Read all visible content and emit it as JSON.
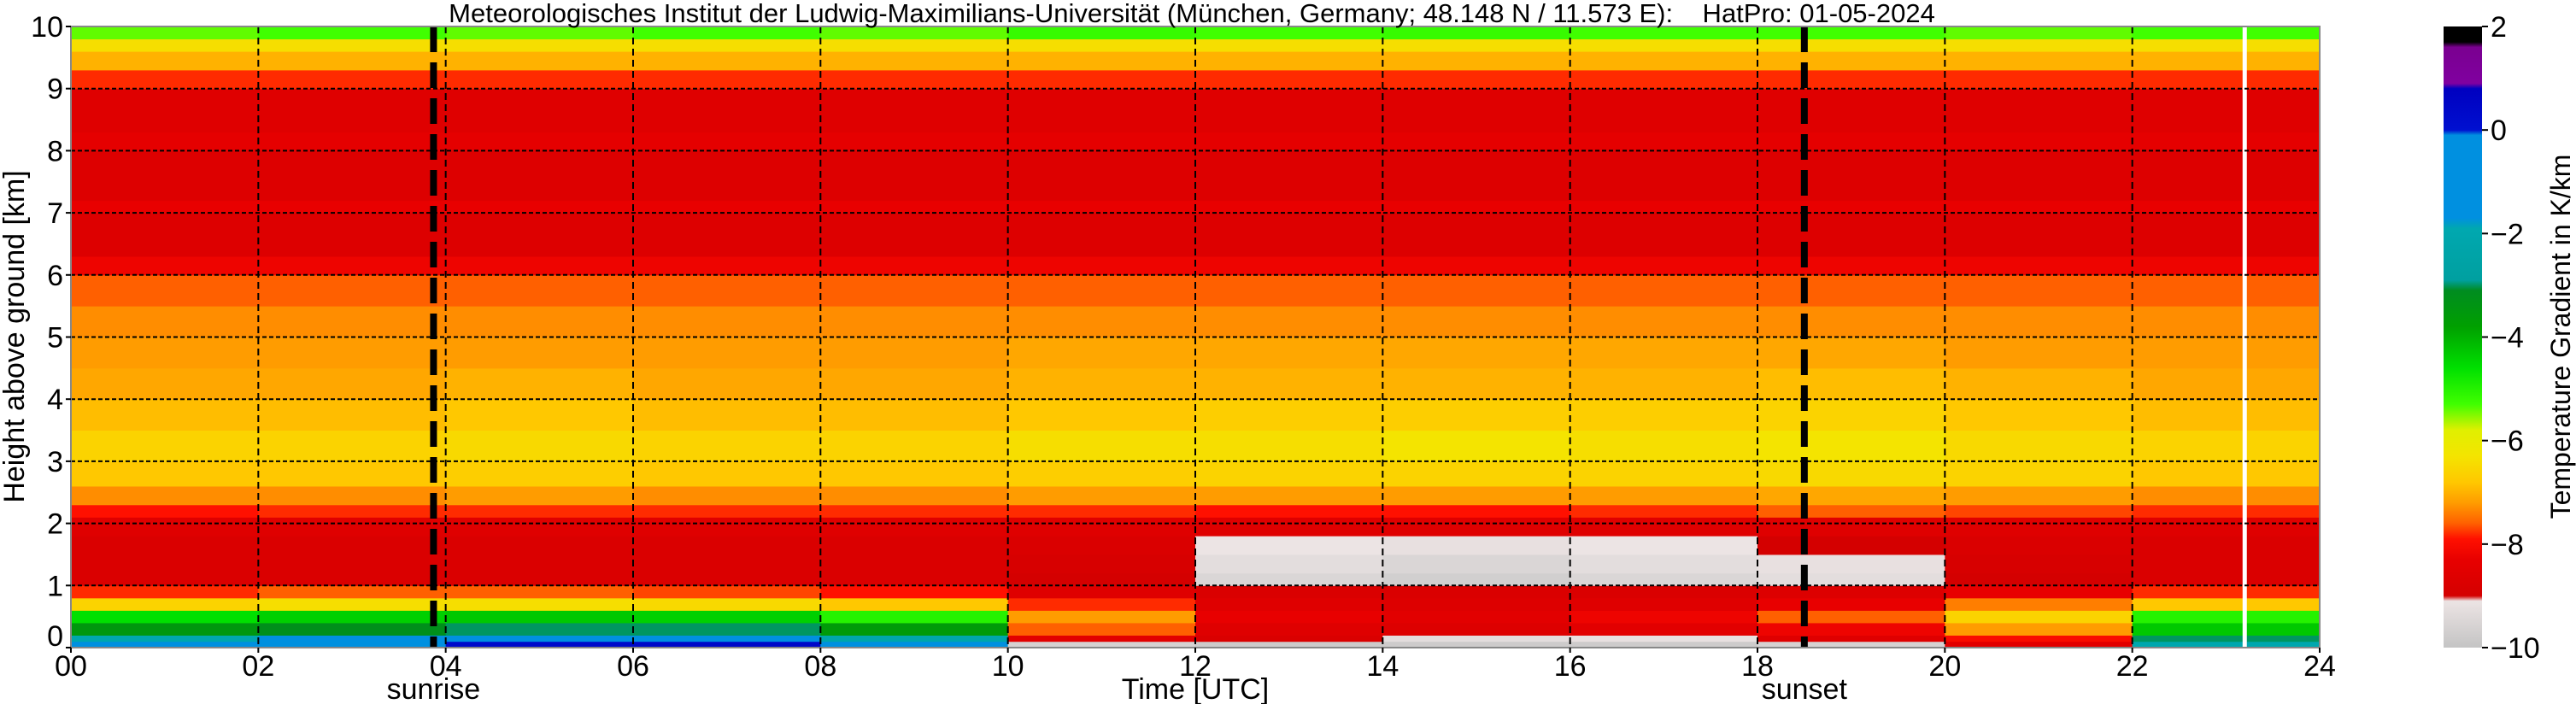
{
  "chart_data": {
    "type": "heatmap",
    "title": "Meteorologisches Institut der Ludwig-Maximilians-Universität (München, Germany; 48.148 N / 11.573 E):    HatPro: 01-05-2024",
    "xlabel": "Time [UTC]",
    "ylabel": "Height above ground [km]",
    "xlim": [
      0,
      24
    ],
    "ylim": [
      0,
      10
    ],
    "xticks": [
      "00",
      "02",
      "04",
      "06",
      "08",
      "10",
      "12",
      "14",
      "16",
      "18",
      "20",
      "22",
      "24"
    ],
    "yticks": [
      "0",
      "1",
      "2",
      "3",
      "4",
      "5",
      "6",
      "7",
      "8",
      "9",
      "10"
    ],
    "grid": true,
    "time_bin_centers_h": [
      1,
      3,
      5,
      7,
      9,
      11,
      13,
      15,
      17,
      19,
      21,
      23
    ],
    "height_bins_km": [
      [
        0,
        0.1
      ],
      [
        0.1,
        0.2
      ],
      [
        0.2,
        0.4
      ],
      [
        0.4,
        0.6
      ],
      [
        0.6,
        0.8
      ],
      [
        0.8,
        1.0
      ],
      [
        1.0,
        1.2
      ],
      [
        1.2,
        1.5
      ],
      [
        1.5,
        1.8
      ],
      [
        1.8,
        2.1
      ],
      [
        2.1,
        2.3
      ],
      [
        2.3,
        2.6
      ],
      [
        2.6,
        3.0
      ],
      [
        3.0,
        3.5
      ],
      [
        3.5,
        4.0
      ],
      [
        4.0,
        4.5
      ],
      [
        4.5,
        5.0
      ],
      [
        5.0,
        5.5
      ],
      [
        5.5,
        6.0
      ],
      [
        6.0,
        6.3
      ],
      [
        6.3,
        7.0
      ],
      [
        7.0,
        7.2
      ],
      [
        7.2,
        8.0
      ],
      [
        8.0,
        8.3
      ],
      [
        8.3,
        9.0
      ],
      [
        9.0,
        9.3
      ],
      [
        9.3,
        9.6
      ],
      [
        9.6,
        9.8
      ],
      [
        9.8,
        10.0
      ]
    ],
    "values": [
      [
        -1.0,
        -0.5,
        0.3,
        0.4,
        -1.5,
        -9.6,
        -9.8,
        -9.8,
        -9.8,
        -9.6,
        -8.5,
        -2.0
      ],
      [
        -2.0,
        -1.6,
        -1.2,
        -1.2,
        -2.2,
        -8.5,
        -8.8,
        -9.3,
        -9.2,
        -8.6,
        -8.0,
        -3.0
      ],
      [
        -3.5,
        -3.2,
        -3.0,
        -3.0,
        -3.6,
        -7.6,
        -8.6,
        -8.7,
        -8.5,
        -8.2,
        -7.2,
        -4.3
      ],
      [
        -4.6,
        -4.4,
        -4.3,
        -4.4,
        -5.0,
        -7.2,
        -8.3,
        -8.5,
        -8.2,
        -7.6,
        -6.6,
        -5.0
      ],
      [
        -6.6,
        -6.4,
        -6.4,
        -6.5,
        -6.8,
        -7.8,
        -8.6,
        -8.7,
        -8.6,
        -8.3,
        -7.4,
        -6.8
      ],
      [
        -7.8,
        -7.6,
        -7.6,
        -7.7,
        -7.9,
        -8.6,
        -8.8,
        -8.8,
        -8.8,
        -8.7,
        -8.3,
        -7.8
      ],
      [
        -8.8,
        -8.8,
        -8.8,
        -8.8,
        -8.8,
        -9.0,
        -9.5,
        -9.7,
        -9.5,
        -9.3,
        -9.0,
        -8.8
      ],
      [
        -8.8,
        -8.8,
        -8.8,
        -8.8,
        -8.8,
        -8.9,
        -9.3,
        -9.5,
        -9.3,
        -9.2,
        -8.9,
        -8.8
      ],
      [
        -8.8,
        -8.8,
        -8.8,
        -8.8,
        -8.8,
        -8.8,
        -9.1,
        -9.2,
        -9.1,
        -9.0,
        -8.8,
        -8.8
      ],
      [
        -8.6,
        -8.6,
        -8.6,
        -8.6,
        -8.6,
        -8.6,
        -8.6,
        -8.6,
        -8.6,
        -8.6,
        -8.6,
        -8.6
      ],
      [
        -7.9,
        -7.8,
        -7.8,
        -7.8,
        -7.8,
        -7.8,
        -7.9,
        -7.9,
        -7.8,
        -7.6,
        -7.7,
        -7.8
      ],
      [
        -7.3,
        -7.3,
        -7.2,
        -7.3,
        -7.3,
        -7.2,
        -7.2,
        -7.2,
        -7.2,
        -7.1,
        -7.2,
        -7.3
      ],
      [
        -6.8,
        -6.8,
        -6.7,
        -6.8,
        -6.8,
        -6.7,
        -6.6,
        -6.6,
        -6.6,
        -6.5,
        -6.6,
        -6.8
      ],
      [
        -6.6,
        -6.6,
        -6.5,
        -6.6,
        -6.6,
        -6.4,
        -6.4,
        -6.3,
        -6.4,
        -6.3,
        -6.5,
        -6.6
      ],
      [
        -6.9,
        -6.9,
        -6.8,
        -6.9,
        -6.9,
        -6.8,
        -6.7,
        -6.7,
        -6.7,
        -6.6,
        -6.8,
        -6.9
      ],
      [
        -7.1,
        -7.1,
        -7.0,
        -7.1,
        -7.1,
        -7.0,
        -7.0,
        -7.0,
        -7.0,
        -6.9,
        -7.0,
        -7.1
      ],
      [
        -7.2,
        -7.2,
        -7.2,
        -7.2,
        -7.2,
        -7.1,
        -7.1,
        -7.1,
        -7.1,
        -7.1,
        -7.2,
        -7.2
      ],
      [
        -7.3,
        -7.3,
        -7.3,
        -7.3,
        -7.3,
        -7.3,
        -7.3,
        -7.3,
        -7.3,
        -7.3,
        -7.3,
        -7.3
      ],
      [
        -7.6,
        -7.6,
        -7.6,
        -7.6,
        -7.6,
        -7.6,
        -7.6,
        -7.6,
        -7.6,
        -7.6,
        -7.6,
        -7.6
      ],
      [
        -8.2,
        -8.2,
        -8.2,
        -8.2,
        -8.2,
        -8.2,
        -8.2,
        -8.2,
        -8.2,
        -8.2,
        -8.2,
        -8.2
      ],
      [
        -8.7,
        -8.7,
        -8.7,
        -8.7,
        -8.7,
        -8.7,
        -8.7,
        -8.7,
        -8.7,
        -8.7,
        -8.7,
        -8.7
      ],
      [
        -8.3,
        -8.3,
        -8.3,
        -8.3,
        -8.3,
        -8.3,
        -8.3,
        -8.3,
        -8.3,
        -8.3,
        -8.3,
        -8.3
      ],
      [
        -8.7,
        -8.7,
        -8.7,
        -8.7,
        -8.7,
        -8.7,
        -8.7,
        -8.7,
        -8.7,
        -8.7,
        -8.7,
        -8.7
      ],
      [
        -8.4,
        -8.4,
        -8.4,
        -8.4,
        -8.4,
        -8.4,
        -8.4,
        -8.4,
        -8.4,
        -8.4,
        -8.4,
        -8.4
      ],
      [
        -8.6,
        -8.6,
        -8.6,
        -8.6,
        -8.6,
        -8.6,
        -8.6,
        -8.6,
        -8.6,
        -8.6,
        -8.6,
        -8.6
      ],
      [
        -7.8,
        -7.8,
        -7.8,
        -7.8,
        -7.8,
        -7.8,
        -7.8,
        -7.8,
        -7.8,
        -7.8,
        -7.8,
        -7.8
      ],
      [
        -7.0,
        -7.0,
        -7.0,
        -7.0,
        -7.0,
        -7.0,
        -7.0,
        -7.0,
        -7.0,
        -7.0,
        -7.0,
        -7.0
      ],
      [
        -6.4,
        -6.4,
        -6.4,
        -6.4,
        -6.4,
        -6.4,
        -6.4,
        -6.4,
        -6.4,
        -6.4,
        -6.4,
        -6.4
      ],
      [
        -5.4,
        -5.3,
        -5.4,
        -5.3,
        -5.4,
        -5.2,
        -5.3,
        -5.2,
        -5.3,
        -5.3,
        -5.4,
        -5.3
      ]
    ],
    "annotations": [
      {
        "label": "sunrise",
        "time_h": 3.87
      },
      {
        "label": "sunset",
        "time_h": 18.5
      }
    ],
    "data_gap_time_h": 23.2,
    "colorbar": {
      "label": "Temperature Gradient in K/km",
      "range": [
        -10,
        2
      ],
      "ticks": [
        "2",
        "0",
        "−2",
        "−4",
        "−6",
        "−8",
        "−10"
      ],
      "tick_values": [
        2,
        0,
        -2,
        -4,
        -6,
        -8,
        -10
      ],
      "stops": [
        {
          "v": -10,
          "c": "#c4c4c4"
        },
        {
          "v": -9.1,
          "c": "#ece4e4"
        },
        {
          "v": -9.0,
          "c": "#d40000"
        },
        {
          "v": -8.3,
          "c": "#e80000"
        },
        {
          "v": -7.9,
          "c": "#ff1000"
        },
        {
          "v": -7.6,
          "c": "#ff6000"
        },
        {
          "v": -7.2,
          "c": "#ff9c00"
        },
        {
          "v": -6.8,
          "c": "#ffc800"
        },
        {
          "v": -6.3,
          "c": "#f4e400"
        },
        {
          "v": -5.8,
          "c": "#e0f000"
        },
        {
          "v": -5.3,
          "c": "#40ff00"
        },
        {
          "v": -4.6,
          "c": "#00e000"
        },
        {
          "v": -3.8,
          "c": "#00a000"
        },
        {
          "v": -3.1,
          "c": "#008c20"
        },
        {
          "v": -2.9,
          "c": "#00a0a0"
        },
        {
          "v": -1.9,
          "c": "#00a8b0"
        },
        {
          "v": -1.7,
          "c": "#0090e0"
        },
        {
          "v": -0.1,
          "c": "#0090e0"
        },
        {
          "v": 0.0,
          "c": "#0010d0"
        },
        {
          "v": 0.8,
          "c": "#0000c0"
        },
        {
          "v": 0.9,
          "c": "#8000a0"
        },
        {
          "v": 1.6,
          "c": "#7a0090"
        },
        {
          "v": 1.7,
          "c": "#000000"
        },
        {
          "v": 2,
          "c": "#000000"
        }
      ]
    }
  }
}
